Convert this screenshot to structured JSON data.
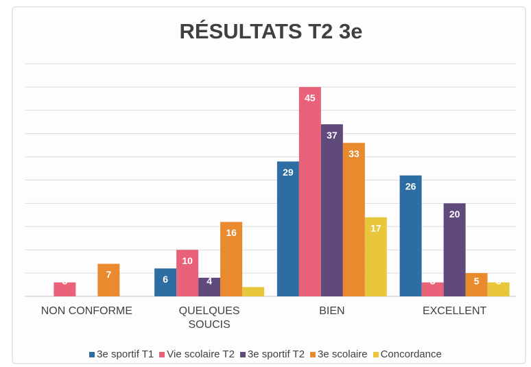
{
  "chart_data": {
    "type": "bar",
    "title": "RÉSULTATS T2 3e",
    "categories": [
      "NON CONFORME",
      "QUELQUES SOUCIS",
      "BIEN",
      "EXCELLENT"
    ],
    "series": [
      {
        "name": "3e sportif T1",
        "color": "#2e6da4",
        "values": [
          0,
          6,
          29,
          26
        ]
      },
      {
        "name": "Vie scolaire T2",
        "color": "#e9627a",
        "values": [
          3,
          10,
          45,
          3
        ]
      },
      {
        "name": "3e sportif T2",
        "color": "#604a7b",
        "values": [
          0,
          4,
          37,
          20
        ]
      },
      {
        "name": "3e scolaire",
        "color": "#e98a2f",
        "values": [
          7,
          16,
          33,
          5
        ]
      },
      {
        "name": "Concordance",
        "color": "#e9c73d",
        "values": [
          0,
          2,
          17,
          3
        ]
      }
    ],
    "ylim": [
      0,
      50
    ],
    "yticks": [
      0,
      5,
      10,
      15,
      20,
      25,
      30,
      35,
      40,
      45,
      50
    ],
    "grid": true,
    "legend": "bottom"
  }
}
